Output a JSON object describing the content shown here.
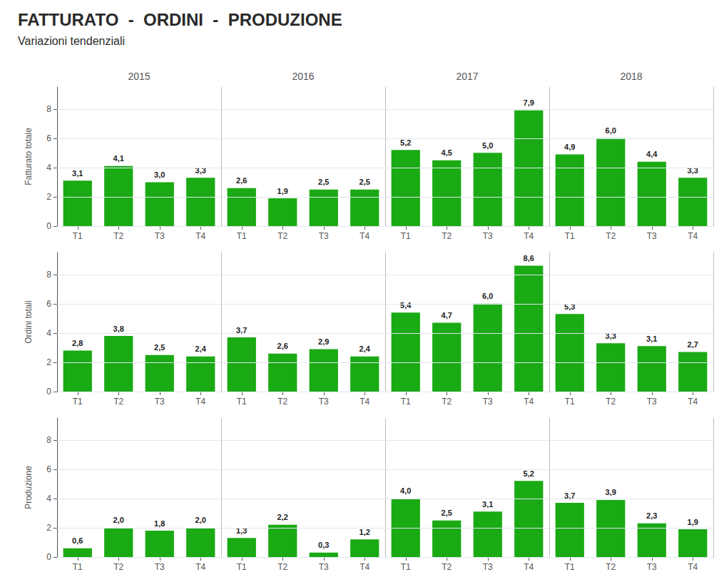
{
  "chart_data": [
    {
      "type": "bar",
      "title": "FATTURATO  -  ORDINI  -  PRODUZIONE",
      "subtitle": "Variazioni tendenziali",
      "group_labels": [
        "2015",
        "2016",
        "2017",
        "2018"
      ],
      "ylabel": "Fatturato totale",
      "categories": [
        "T1",
        "T2",
        "T3",
        "T4",
        "T1",
        "T2",
        "T3",
        "T4",
        "T1",
        "T2",
        "T3",
        "T4",
        "T1",
        "T2",
        "T3",
        "T4"
      ],
      "values": [
        3.1,
        4.1,
        3.0,
        3.3,
        2.6,
        1.9,
        2.5,
        2.5,
        5.2,
        4.5,
        5.0,
        7.9,
        4.9,
        6.0,
        4.4,
        3.3
      ],
      "value_labels": [
        "3,1",
        "4,1",
        "3,0",
        "3,3",
        "2,6",
        "1,9",
        "2,5",
        "2,5",
        "5,2",
        "4,5",
        "5,0",
        "7,9",
        "4,9",
        "6,0",
        "4,4",
        "3,3"
      ],
      "color": "#1aaa14",
      "ylim": [
        0,
        9.5
      ],
      "yticks": [
        0,
        2,
        4,
        6,
        8
      ],
      "grid": true,
      "data_labels": true
    },
    {
      "type": "bar",
      "ylabel": "Ordini totali",
      "categories": [
        "T1",
        "T2",
        "T3",
        "T4",
        "T1",
        "T2",
        "T3",
        "T4",
        "T1",
        "T2",
        "T3",
        "T4",
        "T1",
        "T2",
        "T3",
        "T4"
      ],
      "values": [
        2.8,
        3.8,
        2.5,
        2.4,
        3.7,
        2.6,
        2.9,
        2.4,
        5.4,
        4.7,
        6.0,
        8.6,
        5.3,
        3.3,
        3.1,
        2.7
      ],
      "value_labels": [
        "2,8",
        "3,8",
        "2,5",
        "2,4",
        "3,7",
        "2,6",
        "2,9",
        "2,4",
        "5,4",
        "4,7",
        "6,0",
        "8,6",
        "5,3",
        "3,3",
        "3,1",
        "2,7"
      ],
      "color": "#1aaa14",
      "ylim": [
        0,
        9.5
      ],
      "yticks": [
        0,
        2,
        4,
        6,
        8
      ],
      "grid": true,
      "data_labels": true
    },
    {
      "type": "bar",
      "ylabel": "Produzione",
      "categories": [
        "T1",
        "T2",
        "T3",
        "T4",
        "T1",
        "T2",
        "T3",
        "T4",
        "T1",
        "T2",
        "T3",
        "T4",
        "T1",
        "T2",
        "T3",
        "T4"
      ],
      "values": [
        0.6,
        2.0,
        1.8,
        2.0,
        1.3,
        2.2,
        0.3,
        1.2,
        4.0,
        2.5,
        3.1,
        5.2,
        3.7,
        3.9,
        2.3,
        1.9
      ],
      "value_labels": [
        "0,6",
        "2,0",
        "1,8",
        "2,0",
        "1,3",
        "2,2",
        "0,3",
        "1,2",
        "4,0",
        "2,5",
        "3,1",
        "5,2",
        "3,7",
        "3,9",
        "2,3",
        "1,9"
      ],
      "color": "#1aaa14",
      "ylim": [
        0,
        9.5
      ],
      "yticks": [
        0,
        2,
        4,
        6,
        8
      ],
      "grid": true,
      "data_labels": true
    }
  ]
}
